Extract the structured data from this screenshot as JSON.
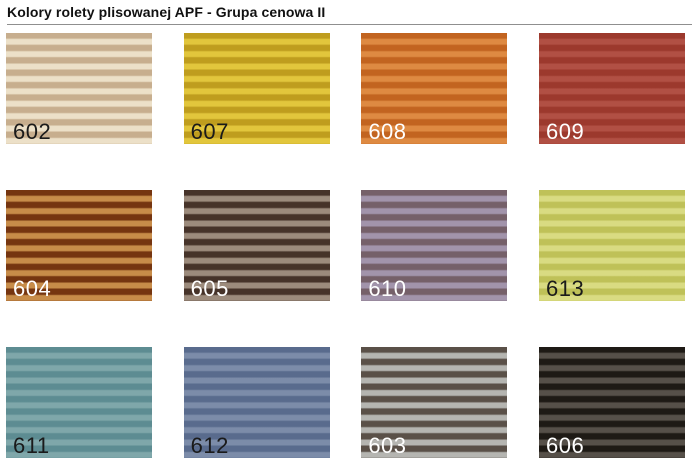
{
  "header": {
    "title": "Kolory rolety plisowanej APF - Grupa cenowa II"
  },
  "colors": {
    "page_background": "#ffffff",
    "divider_line": "#8f8f8f",
    "title_text": "#111111"
  },
  "swatches": [
    {
      "code": "602",
      "name": "beige-cream",
      "dark": "#c7ae8e",
      "light": "#ece0c8",
      "label_color": "#1a1a1a"
    },
    {
      "code": "607",
      "name": "mustard-yellow",
      "dark": "#bf9d1e",
      "light": "#e2c63c",
      "label_color": "#1a1a1a"
    },
    {
      "code": "608",
      "name": "orange",
      "dark": "#c26420",
      "light": "#de8a42",
      "label_color": "#ffffff"
    },
    {
      "code": "609",
      "name": "brick-red",
      "dark": "#9c392d",
      "light": "#b15044",
      "label_color": "#ffffff"
    },
    {
      "code": "604",
      "name": "chestnut-caramel",
      "dark": "#753510",
      "light": "#c78c49",
      "label_color": "#ffffff"
    },
    {
      "code": "605",
      "name": "dark-brown",
      "dark": "#463329",
      "light": "#9c8b7c",
      "label_color": "#ffffff"
    },
    {
      "code": "610",
      "name": "mauve-grey",
      "dark": "#756069",
      "light": "#a294ab",
      "label_color": "#ffffff"
    },
    {
      "code": "613",
      "name": "chartreuse",
      "dark": "#bfc158",
      "light": "#d9db82",
      "label_color": "#1a1a1a"
    },
    {
      "code": "611",
      "name": "teal",
      "dark": "#5d8c92",
      "light": "#7fa7aa",
      "label_color": "#1a1a1a"
    },
    {
      "code": "612",
      "name": "blue-grey",
      "dark": "#596b8d",
      "light": "#7c8ca9",
      "label_color": "#1a1a1a"
    },
    {
      "code": "603",
      "name": "taupe-grey",
      "dark": "#5a5048",
      "light": "#b5b5b1",
      "label_color": "#ffffff"
    },
    {
      "code": "606",
      "name": "black-brown",
      "dark": "#1e1a15",
      "light": "#565049",
      "label_color": "#ffffff"
    }
  ]
}
